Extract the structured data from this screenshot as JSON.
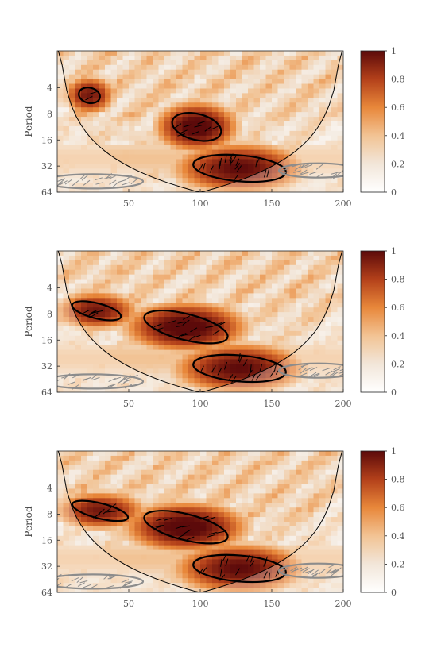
{
  "chart_data": [
    {
      "type": "heatmap",
      "panel": 1,
      "title": "",
      "xlabel": "",
      "ylabel": "Period",
      "xlim": [
        0,
        200
      ],
      "ylim": [
        64,
        1.5
      ],
      "yscale": "log2",
      "x_ticks": [
        "50",
        "100",
        "150",
        "200"
      ],
      "y_ticks": [
        "4",
        "8",
        "16",
        "32",
        "64"
      ],
      "colorbar": {
        "min": 0,
        "max": 1,
        "ticks": [
          "0",
          "0.2",
          "0.4",
          "0.6",
          "0.8",
          "1"
        ]
      },
      "colors": {
        "low": "#ffffff",
        "mid": "#f0a050",
        "high": "#5c0a0a"
      },
      "features": "cone of influence, significance contours, phase arrows",
      "regions": [
        {
          "x": [
            80,
            115
          ],
          "period": [
            8,
            16
          ],
          "level": 0.9
        },
        {
          "x": [
            95,
            160
          ],
          "period": [
            24,
            48
          ],
          "level": 0.85
        },
        {
          "x": [
            15,
            30
          ],
          "period": [
            4,
            6
          ],
          "level": 0.8
        }
      ]
    },
    {
      "type": "heatmap",
      "panel": 2,
      "title": "",
      "xlabel": "",
      "ylabel": "Period",
      "xlim": [
        0,
        200
      ],
      "ylim": [
        64,
        1.5
      ],
      "yscale": "log2",
      "x_ticks": [
        "50",
        "100",
        "150",
        "200"
      ],
      "y_ticks": [
        "4",
        "8",
        "16",
        "32",
        "64"
      ],
      "colorbar": {
        "min": 0,
        "max": 1,
        "ticks": [
          "0",
          "0.2",
          "0.4",
          "0.6",
          "0.8",
          "1"
        ]
      },
      "colors": {
        "low": "#ffffff",
        "mid": "#f0a050",
        "high": "#5c0a0a"
      },
      "features": "cone of influence, significance contours, phase arrows",
      "regions": [
        {
          "x": [
            60,
            120
          ],
          "period": [
            8,
            16
          ],
          "level": 0.9
        },
        {
          "x": [
            95,
            160
          ],
          "period": [
            24,
            48
          ],
          "level": 0.85
        },
        {
          "x": [
            10,
            45
          ],
          "period": [
            6,
            9
          ],
          "level": 0.8
        }
      ]
    },
    {
      "type": "heatmap",
      "panel": 3,
      "title": "",
      "xlabel": "",
      "ylabel": "Period",
      "xlim": [
        0,
        200
      ],
      "ylim": [
        64,
        1.5
      ],
      "yscale": "log2",
      "x_ticks": [
        "50",
        "100",
        "150",
        "200"
      ],
      "y_ticks": [
        "4",
        "8",
        "16",
        "32",
        "64"
      ],
      "colorbar": {
        "min": 0,
        "max": 1,
        "ticks": [
          "0",
          "0.2",
          "0.4",
          "0.6",
          "0.8",
          "1"
        ]
      },
      "colors": {
        "low": "#ffffff",
        "mid": "#f0a050",
        "high": "#5c0a0a"
      },
      "features": "cone of influence, significance contours, phase arrows",
      "regions": [
        {
          "x": [
            60,
            120
          ],
          "period": [
            8,
            16
          ],
          "level": 0.9
        },
        {
          "x": [
            95,
            160
          ],
          "period": [
            24,
            48
          ],
          "level": 0.85
        },
        {
          "x": [
            10,
            50
          ],
          "period": [
            6,
            9
          ],
          "level": 0.8
        }
      ]
    }
  ]
}
